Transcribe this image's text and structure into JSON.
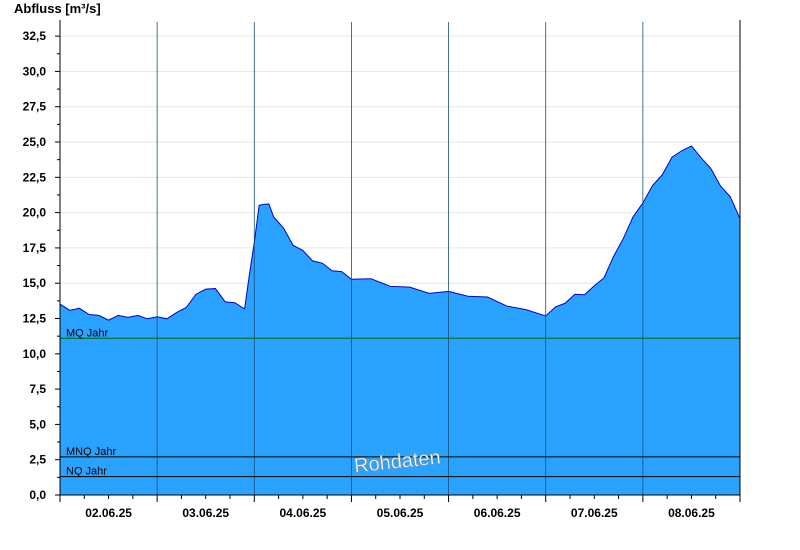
{
  "chart_data": {
    "type": "area",
    "ylabel": "Abfluss [m³/s]",
    "ylim": [
      0,
      33.5
    ],
    "y_ticks": [
      "0,0",
      "2,5",
      "5,0",
      "7,5",
      "10,0",
      "12,5",
      "15,0",
      "17,5",
      "20,0",
      "22,5",
      "25,0",
      "27,5",
      "30,0",
      "32,5"
    ],
    "x_ticks": [
      "02.06.25",
      "03.06.25",
      "04.06.25",
      "05.06.25",
      "06.06.25",
      "07.06.25",
      "08.06.25"
    ],
    "xlim_days": [
      0,
      7
    ],
    "grid": true,
    "series": [
      {
        "color": "#29a3ff",
        "line_color": "#0000cc",
        "x": [
          0.0,
          0.1,
          0.2,
          0.3,
          0.4,
          0.5,
          0.6,
          0.7,
          0.8,
          0.9,
          1.0,
          1.1,
          1.2,
          1.3,
          1.4,
          1.5,
          1.6,
          1.7,
          1.8,
          1.9,
          1.95,
          2.0,
          2.05,
          2.1,
          2.15,
          2.2,
          2.3,
          2.4,
          2.5,
          2.6,
          2.7,
          2.8,
          2.9,
          3.0,
          3.2,
          3.4,
          3.6,
          3.8,
          4.0,
          4.2,
          4.4,
          4.6,
          4.8,
          5.0,
          5.1,
          5.2,
          5.3,
          5.4,
          5.5,
          5.6,
          5.7,
          5.8,
          5.9,
          6.0,
          6.1,
          6.2,
          6.3,
          6.4,
          6.5,
          6.6,
          6.7,
          6.8,
          6.9,
          7.0
        ],
        "values": [
          13.4,
          13.2,
          13.1,
          12.9,
          12.6,
          12.5,
          12.6,
          12.7,
          12.6,
          12.6,
          12.5,
          12.6,
          12.8,
          13.4,
          14.1,
          14.7,
          14.5,
          13.8,
          13.5,
          13.3,
          15.5,
          18.0,
          20.4,
          20.7,
          20.5,
          19.8,
          18.8,
          17.8,
          17.2,
          16.7,
          16.3,
          16.0,
          15.7,
          15.4,
          15.2,
          14.9,
          14.6,
          14.4,
          14.3,
          14.2,
          13.9,
          13.5,
          13.0,
          12.8,
          13.2,
          13.7,
          14.1,
          14.3,
          14.7,
          15.5,
          16.8,
          18.3,
          19.6,
          20.8,
          21.8,
          22.8,
          23.8,
          24.5,
          24.6,
          24.0,
          23.0,
          22.0,
          21.0,
          19.7
        ]
      }
    ],
    "reference_lines": [
      {
        "label": "MQ Jahr",
        "value": 11.1,
        "color": "#006400"
      },
      {
        "label": "MNQ Jahr",
        "value": 2.7,
        "color": "#000000"
      },
      {
        "label": "NQ Jahr",
        "value": 1.3,
        "color": "#000000"
      }
    ],
    "watermark": "Rohdaten"
  }
}
